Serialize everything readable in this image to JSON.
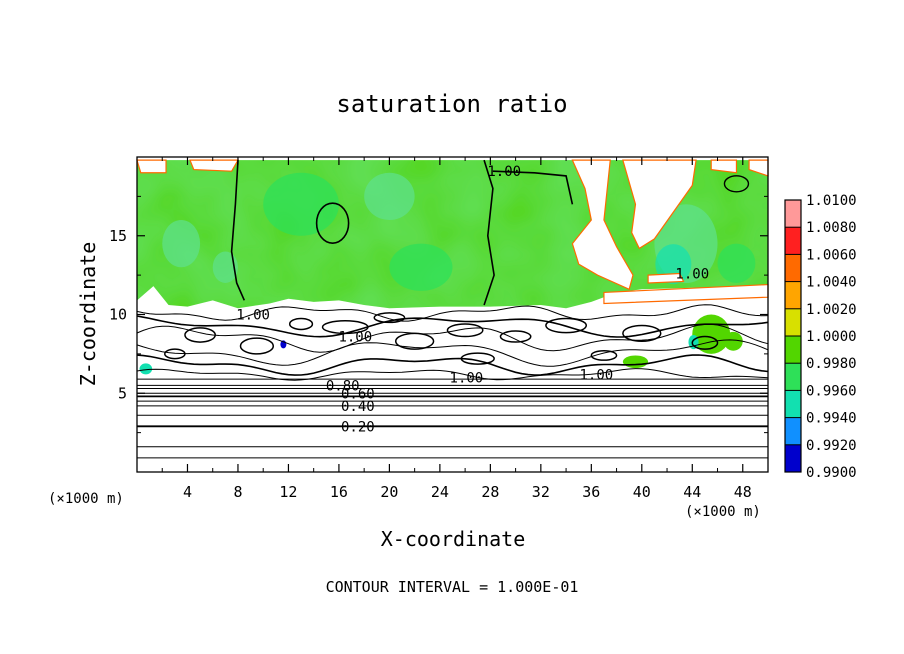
{
  "chart_data": {
    "type": "heatmap",
    "title": "saturation ratio",
    "xlabel": "X-coordinate",
    "ylabel": "Z-coordinate",
    "x_unit": "(×1000 m)",
    "z_unit": "(×1000 m)",
    "xlim": [
      0,
      50
    ],
    "ylim": [
      0,
      20
    ],
    "x_ticks": [
      "4",
      "8",
      "12",
      "16",
      "20",
      "24",
      "28",
      "32",
      "36",
      "40",
      "44",
      "48"
    ],
    "y_ticks": [
      "5",
      "10",
      "15"
    ],
    "contour_interval_text": "CONTOUR INTERVAL = 1.000E-01",
    "colorbar": {
      "levels": [
        "1.0100",
        "1.0080",
        "1.0060",
        "1.0040",
        "1.0020",
        "1.0000",
        "0.9980",
        "0.9960",
        "0.9940",
        "0.9920",
        "0.9900"
      ],
      "colors": [
        "#ff9999",
        "#ff2020",
        "#ff6a00",
        "#ffa500",
        "#d8e000",
        "#52d600",
        "#2ee058",
        "#12e0b0",
        "#1090ff",
        "#0000cc",
        "#4a0090"
      ]
    },
    "contour_labels": [
      {
        "text": "1.00",
        "x": 29.1,
        "z": 19.1
      },
      {
        "text": "1.00",
        "x": 44.0,
        "z": 12.6
      },
      {
        "text": "1.00",
        "x": 9.2,
        "z": 10.0
      },
      {
        "text": "1.00",
        "x": 17.3,
        "z": 8.6
      },
      {
        "text": "1.00",
        "x": 26.1,
        "z": 6.0
      },
      {
        "text": "1.00",
        "x": 36.4,
        "z": 6.2
      },
      {
        "text": "0.80",
        "x": 16.3,
        "z": 5.5
      },
      {
        "text": "0.60",
        "x": 17.5,
        "z": 5.0
      },
      {
        "text": "0.40",
        "x": 17.5,
        "z": 4.2
      },
      {
        "text": "0.20",
        "x": 17.5,
        "z": 2.9
      }
    ],
    "horizontal_contours_z": [
      0.9,
      1.6,
      2.9,
      3.6,
      4.2,
      4.5,
      4.8,
      5.0,
      5.3,
      5.5,
      5.9
    ],
    "color_regions": [
      {
        "level": "1.0000",
        "desc": "upper layer z 10.3–19.8",
        "x0": 0,
        "z0": 10.4,
        "x1": 50,
        "z1": 19.8
      }
    ]
  }
}
